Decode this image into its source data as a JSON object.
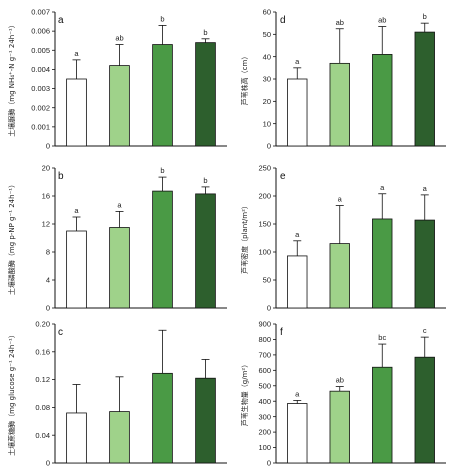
{
  "colors": {
    "bar_fills": [
      "#ffffff",
      "#9fd28a",
      "#4a9a45",
      "#2d5f2d"
    ],
    "bar_stroke": "#111111",
    "axis": "#111111"
  },
  "chart_data": [
    {
      "type": "bar",
      "panel_label": "a",
      "ylabel": "土壤脲酶（mg NH₄⁺-N g⁻¹ 24h⁻¹）",
      "ylim": [
        0,
        0.007
      ],
      "yticks": [
        0,
        0.001,
        0.002,
        0.003,
        0.004,
        0.005,
        0.006,
        0.007
      ],
      "ytick_labels": [
        "0",
        "0.001",
        "0.002",
        "0.003",
        "0.004",
        "0.005",
        "0.006",
        "0.007"
      ],
      "values": [
        0.0035,
        0.0042,
        0.0053,
        0.0054
      ],
      "errors": [
        0.001,
        0.0011,
        0.001,
        0.0002
      ],
      "significance": [
        "a",
        "ab",
        "b",
        "b"
      ]
    },
    {
      "type": "bar",
      "panel_label": "d",
      "ylabel": "芦苇株高（cm）",
      "ylim": [
        0,
        60
      ],
      "yticks": [
        0,
        10,
        20,
        30,
        40,
        50,
        60
      ],
      "ytick_labels": [
        "0",
        "10",
        "20",
        "30",
        "40",
        "50",
        "60"
      ],
      "values": [
        30,
        37,
        41,
        51
      ],
      "errors": [
        5,
        15.5,
        12.5,
        4
      ],
      "significance": [
        "a",
        "ab",
        "ab",
        "b"
      ]
    },
    {
      "type": "bar",
      "panel_label": "b",
      "ylabel": "土壤磷酸酶（mg p-NP g⁻¹ 24h⁻¹）",
      "ylim": [
        0,
        20
      ],
      "yticks": [
        0,
        4,
        8,
        12,
        16,
        20
      ],
      "ytick_labels": [
        "0",
        "4",
        "8",
        "12",
        "16",
        "20"
      ],
      "values": [
        11,
        11.5,
        16.7,
        16.3
      ],
      "errors": [
        2,
        2.3,
        2.0,
        1.0
      ],
      "significance": [
        "a",
        "a",
        "b",
        "b"
      ]
    },
    {
      "type": "bar",
      "panel_label": "e",
      "ylabel": "芦苇密度（plant/m²）",
      "ylim": [
        0,
        250
      ],
      "yticks": [
        0,
        50,
        100,
        150,
        200,
        250
      ],
      "ytick_labels": [
        "0",
        "50",
        "100",
        "150",
        "200",
        "250"
      ],
      "values": [
        93,
        115,
        159,
        157
      ],
      "errors": [
        27,
        68,
        45,
        45
      ],
      "significance": [
        "a",
        "a",
        "a",
        "a"
      ]
    },
    {
      "type": "bar",
      "panel_label": "c",
      "ylabel": "土壤蔗糖酶（mg glucose g⁻¹ 24h⁻¹）",
      "ylim": [
        0,
        0.2
      ],
      "yticks": [
        0,
        0.04,
        0.08,
        0.12,
        0.16,
        0.2
      ],
      "ytick_labels": [
        "0",
        "0.04",
        "0.08",
        "0.12",
        "0.16",
        "0.20"
      ],
      "values": [
        0.072,
        0.074,
        0.129,
        0.122
      ],
      "errors": [
        0.041,
        0.05,
        0.062,
        0.027
      ],
      "significance": [
        "",
        "",
        "",
        ""
      ]
    },
    {
      "type": "bar",
      "panel_label": "f",
      "ylabel": "芦苇生物量（g/m²）",
      "ylim": [
        0,
        900
      ],
      "yticks": [
        0,
        100,
        200,
        300,
        400,
        500,
        600,
        700,
        800,
        900
      ],
      "ytick_labels": [
        "0",
        "100",
        "200",
        "300",
        "400",
        "500",
        "600",
        "700",
        "800",
        "900"
      ],
      "values": [
        385,
        465,
        620,
        685
      ],
      "errors": [
        20,
        30,
        150,
        130
      ],
      "significance": [
        "a",
        "ab",
        "bc",
        "c"
      ]
    }
  ]
}
